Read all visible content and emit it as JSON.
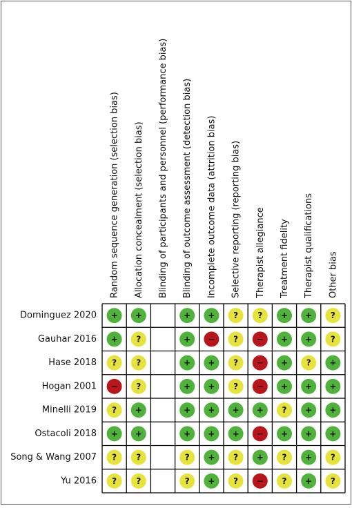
{
  "columns": [
    "Random sequence generation (selection bias)",
    "Allocation concealment (selection bias)",
    "Blinding of participants and personnel (performance bias)",
    "Blinding of outcome assessment (detection bias)",
    "Incomplete outcome data (attrition bias)",
    "Selective reporting (reporting bias)",
    "Therapist allegiance",
    "Treatment fidelity",
    "Therapist qualifications",
    "Other bias"
  ],
  "rows": [
    {
      "study": "Dominguez 2020",
      "judgements": [
        "+",
        "+",
        null,
        "+",
        "+",
        "?",
        "?",
        "+",
        "+",
        "?"
      ]
    },
    {
      "study": "Gauhar 2016",
      "judgements": [
        "+",
        "?",
        null,
        "+",
        "−",
        "?",
        "−",
        "+",
        "+",
        "?"
      ]
    },
    {
      "study": "Hase 2018",
      "judgements": [
        "?",
        "?",
        null,
        "+",
        "+",
        "?",
        "−",
        "+",
        "?",
        "+"
      ]
    },
    {
      "study": "Hogan 2001",
      "judgements": [
        "−",
        "?",
        null,
        "+",
        "+",
        "?",
        "−",
        "+",
        "+",
        "+"
      ]
    },
    {
      "study": "Minelli 2019",
      "judgements": [
        "?",
        "+",
        null,
        "+",
        "+",
        "+",
        "+",
        "?",
        "+",
        "+"
      ]
    },
    {
      "study": "Ostacoli 2018",
      "judgements": [
        "+",
        "+",
        null,
        "+",
        "+",
        "+",
        "−",
        "+",
        "+",
        "+"
      ]
    },
    {
      "study": "Song & Wang 2007",
      "judgements": [
        "?",
        "?",
        null,
        "?",
        "+",
        "?",
        "+",
        "?",
        "+",
        "?"
      ]
    },
    {
      "study": "Yu 2016",
      "judgements": [
        "?",
        "?",
        null,
        "?",
        "+",
        "?",
        "−",
        "?",
        "+",
        "?"
      ]
    }
  ],
  "colors": {
    "+": "#4fb23a",
    "?": "#e6e33c",
    "−": "#b8161b"
  }
}
